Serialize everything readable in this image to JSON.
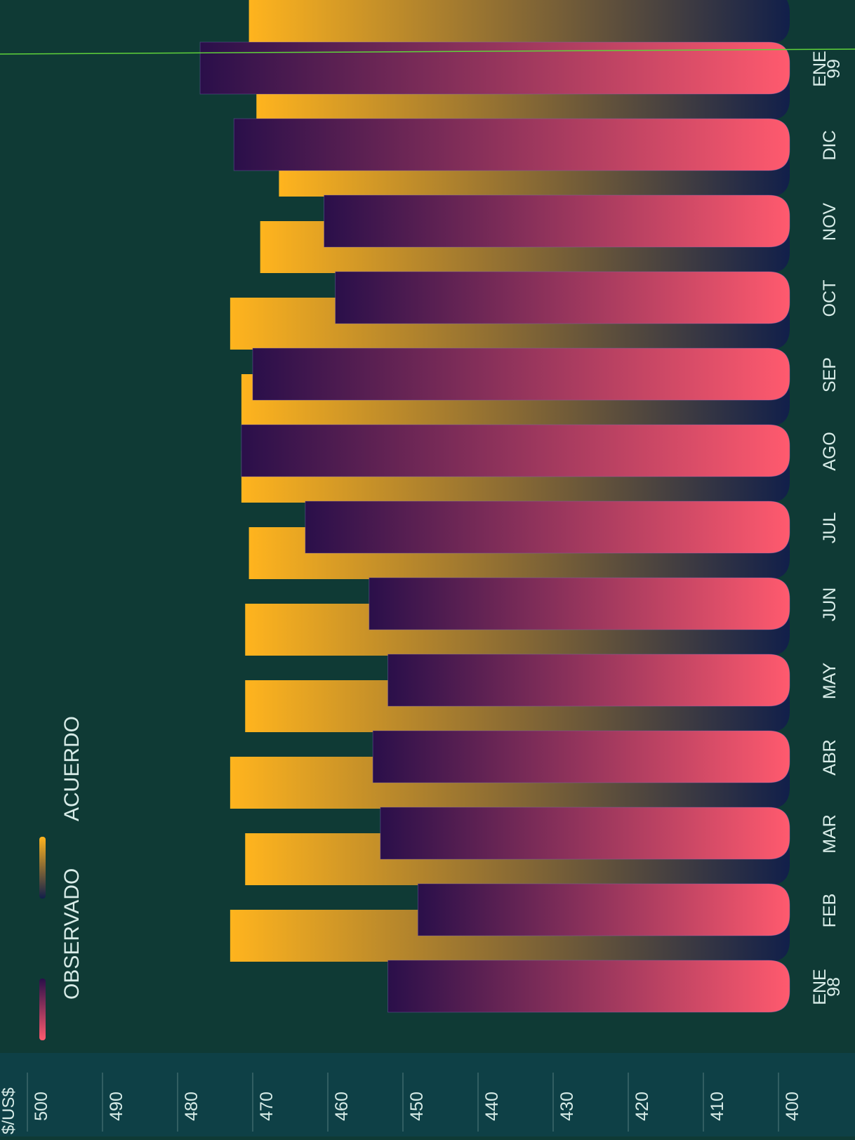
{
  "chart_data": {
    "type": "bar",
    "orientation": "horizontal",
    "unit_label": "$/US$",
    "categories": [
      "ENE 98",
      "FEB",
      "MAR",
      "ABR",
      "MAY",
      "JUN",
      "JUL",
      "AGO",
      "SEP",
      "OCT",
      "NOV",
      "DIC",
      "ENE 99"
    ],
    "category_labels": [
      [
        "ENE",
        "98"
      ],
      [
        "FEB"
      ],
      [
        "MAR"
      ],
      [
        "ABR"
      ],
      [
        "MAY"
      ],
      [
        "JUN"
      ],
      [
        "JUL"
      ],
      [
        "AGO"
      ],
      [
        "SEP"
      ],
      [
        "OCT"
      ],
      [
        "NOV"
      ],
      [
        "DIC"
      ],
      [
        "ENE",
        "99"
      ]
    ],
    "series": [
      {
        "name": "OBSERVADO",
        "values": [
          453.5,
          449.5,
          454.5,
          455.5,
          453.5,
          456.0,
          464.5,
          473.0,
          471.5,
          460.5,
          462.0,
          474.0,
          478.5
        ],
        "color_start": "#2a0f4a",
        "color_end": "#ff5a6e"
      },
      {
        "name": "ACUERDO",
        "values": [
          474.5,
          472.5,
          474.5,
          472.5,
          472.5,
          472.0,
          473.0,
          473.0,
          474.5,
          470.5,
          468.0,
          471.0,
          472.0
        ],
        "color_start": "#ffb41e",
        "color_end": "#111f4a"
      }
    ],
    "value_axis": {
      "range": [
        400,
        500
      ],
      "ticks": [
        "400",
        "410",
        "420",
        "430",
        "440",
        "450",
        "460",
        "470",
        "480",
        "490",
        "500"
      ]
    },
    "grid": false,
    "legend": "top"
  },
  "colors": {
    "background": "#0f3a35",
    "axis_band": "#0e4654",
    "text": "#d8ece8",
    "reference_line": "#5fd23a"
  }
}
